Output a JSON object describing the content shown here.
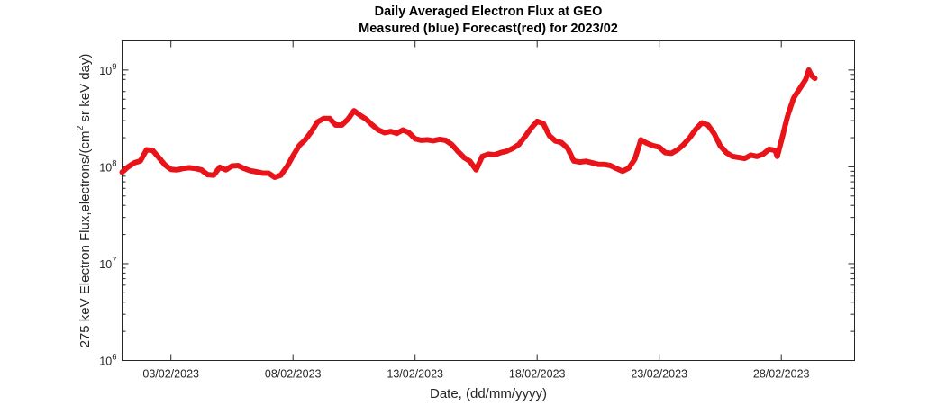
{
  "chart_data": {
    "type": "scatter",
    "title": "Daily Averaged Electron Flux at GEO",
    "subtitle": "Measured (blue) Forecast(red) for 2023/02",
    "xlabel": "Date, (dd/mm/yyyy)",
    "ylabel": {
      "prefix": "275 keV Electron Flux,electrons/(cm",
      "superscript": "2",
      "suffix": " sr keV day)"
    },
    "y_scale": "log",
    "ylim": [
      1000000,
      2000000000
    ],
    "xlim": [
      "2023-02-01",
      "2023-03-03"
    ],
    "grid": false,
    "x_tick_labels": [
      {
        "date": "2023-02-03",
        "label": "03/02/2023"
      },
      {
        "date": "2023-02-08",
        "label": "08/02/2023"
      },
      {
        "date": "2023-02-13",
        "label": "13/02/2023"
      },
      {
        "date": "2023-02-18",
        "label": "18/02/2023"
      },
      {
        "date": "2023-02-23",
        "label": "23/02/2023"
      },
      {
        "date": "2023-02-28",
        "label": "28/02/2023"
      }
    ],
    "y_tick_labels": [
      {
        "value": 1000000,
        "base": "10",
        "exp": "6"
      },
      {
        "value": 10000000,
        "base": "10",
        "exp": "7"
      },
      {
        "value": 100000000,
        "base": "10",
        "exp": "8"
      },
      {
        "value": 1000000000,
        "base": "10",
        "exp": "9"
      }
    ],
    "series": [
      {
        "color": "#e8141a",
        "points": [
          [
            "2023-02-01 00:00",
            88000000
          ],
          [
            "2023-02-01 06:00",
            100000000
          ],
          [
            "2023-02-01 12:00",
            110000000
          ],
          [
            "2023-02-01 18:00",
            115000000
          ],
          [
            "2023-02-02 00:00",
            150000000
          ],
          [
            "2023-02-02 06:00",
            148000000
          ],
          [
            "2023-02-02 12:00",
            125000000
          ],
          [
            "2023-02-02 18:00",
            105000000
          ],
          [
            "2023-02-03 00:00",
            94000000
          ],
          [
            "2023-02-03 06:00",
            93000000
          ],
          [
            "2023-02-03 12:00",
            96000000
          ],
          [
            "2023-02-03 18:00",
            98000000
          ],
          [
            "2023-02-04 00:00",
            96000000
          ],
          [
            "2023-02-04 06:00",
            93000000
          ],
          [
            "2023-02-04 12:00",
            83000000
          ],
          [
            "2023-02-04 18:00",
            82000000
          ],
          [
            "2023-02-05 00:00",
            99000000
          ],
          [
            "2023-02-05 06:00",
            93000000
          ],
          [
            "2023-02-05 12:00",
            102000000
          ],
          [
            "2023-02-05 18:00",
            103000000
          ],
          [
            "2023-02-06 00:00",
            96000000
          ],
          [
            "2023-02-06 06:00",
            91000000
          ],
          [
            "2023-02-06 12:00",
            89000000
          ],
          [
            "2023-02-06 18:00",
            86000000
          ],
          [
            "2023-02-07 00:00",
            86000000
          ],
          [
            "2023-02-07 06:00",
            78000000
          ],
          [
            "2023-02-07 12:00",
            82000000
          ],
          [
            "2023-02-07 18:00",
            100000000
          ],
          [
            "2023-02-08 00:00",
            130000000
          ],
          [
            "2023-02-08 06:00",
            165000000
          ],
          [
            "2023-02-08 12:00",
            190000000
          ],
          [
            "2023-02-08 18:00",
            230000000
          ],
          [
            "2023-02-09 00:00",
            290000000
          ],
          [
            "2023-02-09 06:00",
            315000000
          ],
          [
            "2023-02-09 12:00",
            315000000
          ],
          [
            "2023-02-09 18:00",
            270000000
          ],
          [
            "2023-02-10 00:00",
            270000000
          ],
          [
            "2023-02-10 06:00",
            310000000
          ],
          [
            "2023-02-10 12:00",
            380000000
          ],
          [
            "2023-02-10 18:00",
            340000000
          ],
          [
            "2023-02-11 00:00",
            310000000
          ],
          [
            "2023-02-11 06:00",
            270000000
          ],
          [
            "2023-02-11 12:00",
            240000000
          ],
          [
            "2023-02-11 18:00",
            225000000
          ],
          [
            "2023-02-12 00:00",
            232000000
          ],
          [
            "2023-02-12 06:00",
            222000000
          ],
          [
            "2023-02-12 12:00",
            240000000
          ],
          [
            "2023-02-12 18:00",
            225000000
          ],
          [
            "2023-02-13 00:00",
            195000000
          ],
          [
            "2023-02-13 06:00",
            188000000
          ],
          [
            "2023-02-13 12:00",
            190000000
          ],
          [
            "2023-02-13 18:00",
            186000000
          ],
          [
            "2023-02-14 00:00",
            192000000
          ],
          [
            "2023-02-14 06:00",
            188000000
          ],
          [
            "2023-02-14 12:00",
            170000000
          ],
          [
            "2023-02-14 18:00",
            145000000
          ],
          [
            "2023-02-15 00:00",
            125000000
          ],
          [
            "2023-02-15 06:00",
            114000000
          ],
          [
            "2023-02-15 12:00",
            93000000
          ],
          [
            "2023-02-15 18:00",
            128000000
          ],
          [
            "2023-02-16 00:00",
            135000000
          ],
          [
            "2023-02-16 06:00",
            133000000
          ],
          [
            "2023-02-16 12:00",
            140000000
          ],
          [
            "2023-02-16 18:00",
            145000000
          ],
          [
            "2023-02-17 00:00",
            155000000
          ],
          [
            "2023-02-17 06:00",
            170000000
          ],
          [
            "2023-02-17 12:00",
            205000000
          ],
          [
            "2023-02-17 18:00",
            250000000
          ],
          [
            "2023-02-18 00:00",
            295000000
          ],
          [
            "2023-02-18 06:00",
            280000000
          ],
          [
            "2023-02-18 12:00",
            210000000
          ],
          [
            "2023-02-18 18:00",
            185000000
          ],
          [
            "2023-02-19 00:00",
            178000000
          ],
          [
            "2023-02-19 06:00",
            155000000
          ],
          [
            "2023-02-19 12:00",
            115000000
          ],
          [
            "2023-02-19 18:00",
            112000000
          ],
          [
            "2023-02-20 00:00",
            114000000
          ],
          [
            "2023-02-20 06:00",
            110000000
          ],
          [
            "2023-02-20 12:00",
            106000000
          ],
          [
            "2023-02-20 18:00",
            106000000
          ],
          [
            "2023-02-21 00:00",
            103000000
          ],
          [
            "2023-02-21 06:00",
            96000000
          ],
          [
            "2023-02-21 12:00",
            90000000
          ],
          [
            "2023-02-21 18:00",
            97000000
          ],
          [
            "2023-02-22 00:00",
            120000000
          ],
          [
            "2023-02-22 06:00",
            190000000
          ],
          [
            "2023-02-22 12:00",
            175000000
          ],
          [
            "2023-02-22 18:00",
            165000000
          ],
          [
            "2023-02-23 00:00",
            160000000
          ],
          [
            "2023-02-23 06:00",
            140000000
          ],
          [
            "2023-02-23 12:00",
            138000000
          ],
          [
            "2023-02-23 18:00",
            150000000
          ],
          [
            "2023-02-24 00:00",
            170000000
          ],
          [
            "2023-02-24 06:00",
            200000000
          ],
          [
            "2023-02-24 12:00",
            245000000
          ],
          [
            "2023-02-24 18:00",
            285000000
          ],
          [
            "2023-02-25 00:00",
            270000000
          ],
          [
            "2023-02-25 06:00",
            220000000
          ],
          [
            "2023-02-25 12:00",
            165000000
          ],
          [
            "2023-02-25 18:00",
            140000000
          ],
          [
            "2023-02-26 00:00",
            128000000
          ],
          [
            "2023-02-26 06:00",
            125000000
          ],
          [
            "2023-02-26 12:00",
            122000000
          ],
          [
            "2023-02-26 18:00",
            132000000
          ],
          [
            "2023-02-27 00:00",
            128000000
          ],
          [
            "2023-02-27 06:00",
            135000000
          ],
          [
            "2023-02-27 12:00",
            152000000
          ],
          [
            "2023-02-27 18:00",
            148000000
          ],
          [
            "2023-02-27 20:00",
            128000000
          ],
          [
            "2023-02-28 00:00",
            185000000
          ],
          [
            "2023-02-28 06:00",
            330000000
          ],
          [
            "2023-02-28 12:00",
            510000000
          ],
          [
            "2023-02-28 18:00",
            640000000
          ],
          [
            "2023-03-01 00:00",
            800000000
          ],
          [
            "2023-03-01 03:00",
            1000000000
          ],
          [
            "2023-03-01 06:00",
            870000000
          ],
          [
            "2023-03-01 09:00",
            820000000
          ]
        ]
      }
    ]
  }
}
